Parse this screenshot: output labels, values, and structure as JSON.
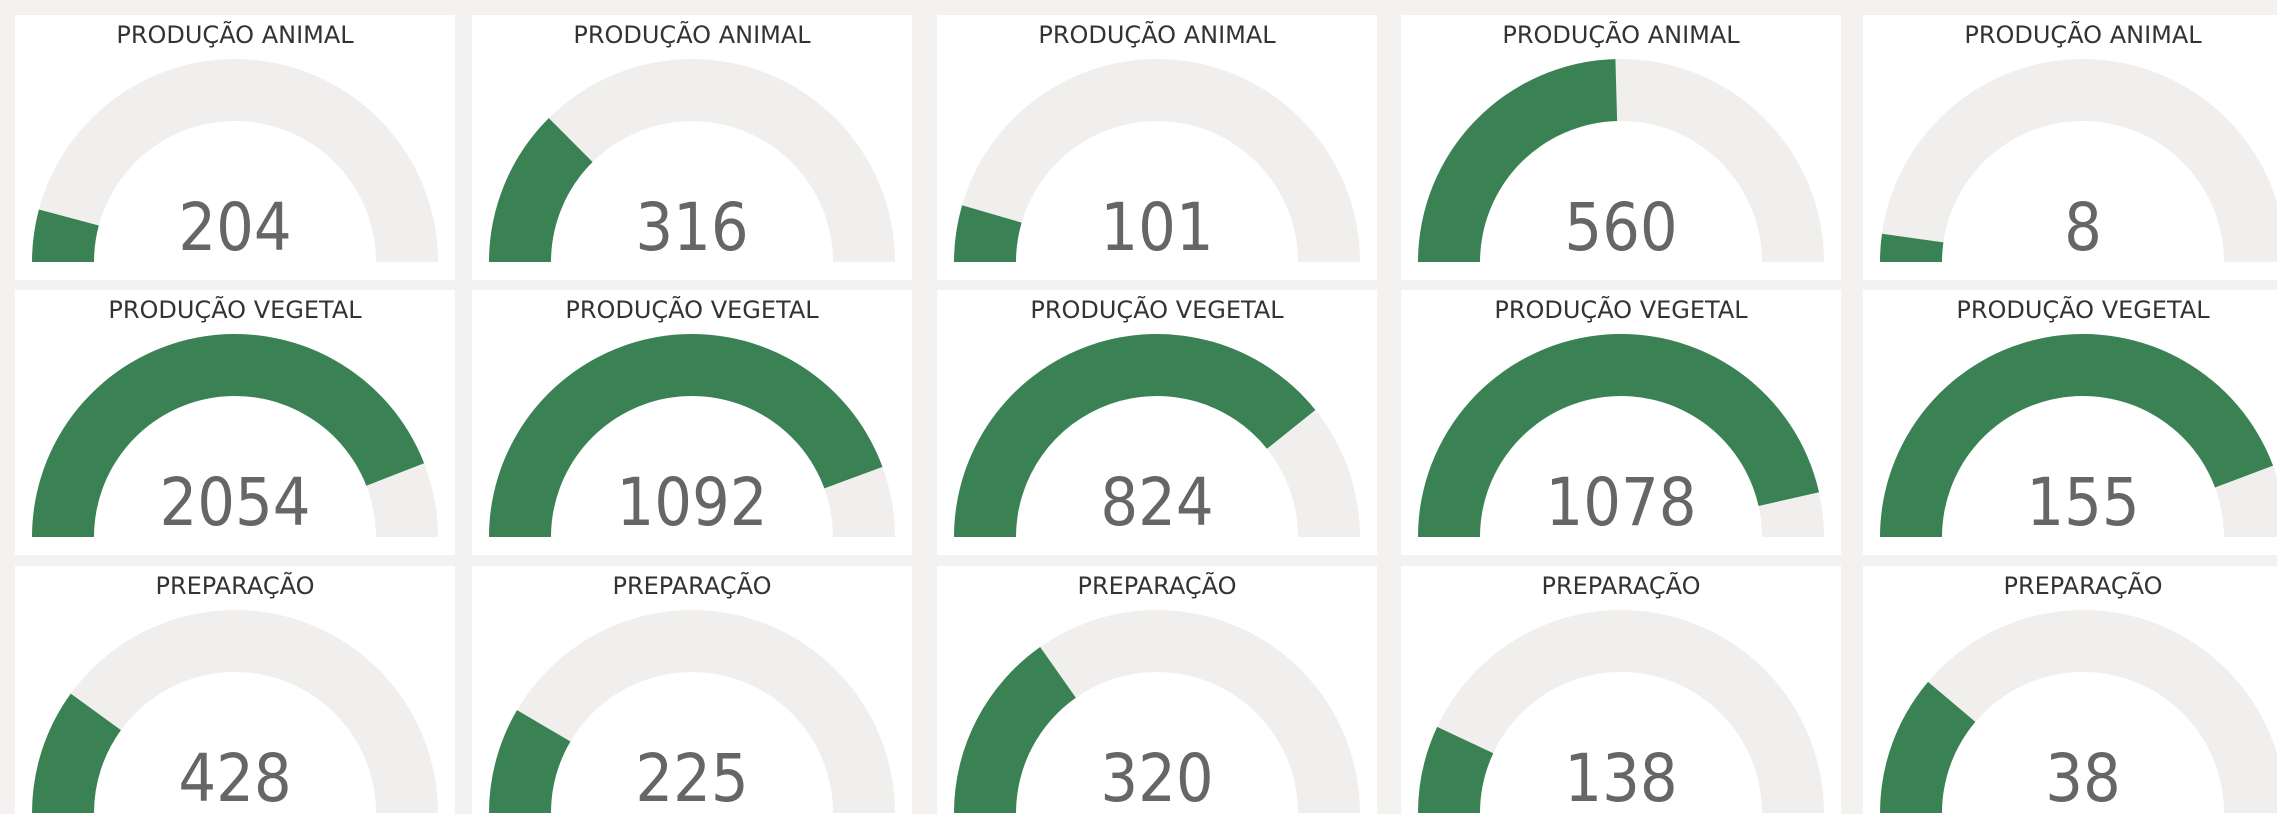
{
  "gauges": [
    {
      "title": "PRODUÇÃO ANIMAL",
      "value": 204,
      "max": 2450
    },
    {
      "title": "PRODUÇÃO ANIMAL",
      "value": 316,
      "max": 1260
    },
    {
      "title": "PRODUÇÃO ANIMAL",
      "value": 101,
      "max": 1120
    },
    {
      "title": "PRODUÇÃO ANIMAL",
      "value": 560,
      "max": 1140
    },
    {
      "title": "PRODUÇÃO ANIMAL",
      "value": 8,
      "max": 180
    },
    {
      "title": "PRODUÇÃO VEGETAL",
      "value": 2054,
      "max": 2330
    },
    {
      "title": "PRODUÇÃO VEGETAL",
      "value": 1092,
      "max": 1230
    },
    {
      "title": "PRODUÇÃO VEGETAL",
      "value": 824,
      "max": 1050
    },
    {
      "title": "PRODUÇÃO VEGETAL",
      "value": 1078,
      "max": 1160
    },
    {
      "title": "PRODUÇÃO VEGETAL",
      "value": 155,
      "max": 175
    },
    {
      "title": "PREPARAÇÃO",
      "value": 428,
      "max": 2140
    },
    {
      "title": "PREPARAÇÃO",
      "value": 225,
      "max": 1330
    },
    {
      "title": "PREPARAÇÃO",
      "value": 320,
      "max": 1050
    },
    {
      "title": "PREPARAÇÃO",
      "value": 138,
      "max": 990
    },
    {
      "title": "PREPARAÇÃO",
      "value": 38,
      "max": 170
    }
  ],
  "color": "#3a8254",
  "track_color": "#f0efed"
}
